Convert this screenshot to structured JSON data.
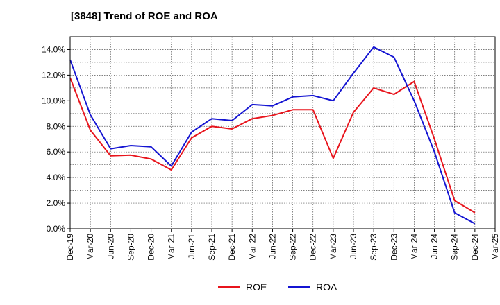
{
  "chart_data": {
    "type": "line",
    "title": "[3848]  Trend of ROE and ROA",
    "xlabel": "",
    "ylabel": "",
    "x": [
      "Dec-19",
      "Mar-20",
      "Jun-20",
      "Sep-20",
      "Dec-20",
      "Mar-21",
      "Jun-21",
      "Sep-21",
      "Dec-21",
      "Mar-22",
      "Jun-22",
      "Sep-22",
      "Dec-22",
      "Mar-23",
      "Jun-23",
      "Sep-23",
      "Dec-23",
      "Mar-24",
      "Jun-24",
      "Sep-24",
      "Dec-24",
      "Mar-25"
    ],
    "ylim": [
      0,
      15
    ],
    "yticks": [
      "0.0%",
      "2.0%",
      "4.0%",
      "6.0%",
      "8.0%",
      "10.0%",
      "12.0%",
      "14.0%"
    ],
    "ytick_values": [
      0,
      2,
      4,
      6,
      8,
      10,
      12,
      14
    ],
    "grid": true,
    "legend_position": "bottom-center",
    "series": [
      {
        "name": "ROE",
        "color": "#e8141c",
        "values": [
          11.8,
          7.7,
          5.7,
          5.75,
          5.45,
          4.6,
          7.1,
          8.0,
          7.8,
          8.6,
          8.85,
          9.3,
          9.3,
          5.5,
          9.1,
          11.0,
          10.5,
          11.5,
          7.0,
          2.2,
          1.25,
          null
        ]
      },
      {
        "name": "ROA",
        "color": "#1414d2",
        "values": [
          13.2,
          8.9,
          6.25,
          6.5,
          6.4,
          4.9,
          7.55,
          8.6,
          8.45,
          9.7,
          9.6,
          10.3,
          10.4,
          10.0,
          12.15,
          14.2,
          13.4,
          10.0,
          6.0,
          1.25,
          0.4,
          null
        ]
      }
    ]
  }
}
